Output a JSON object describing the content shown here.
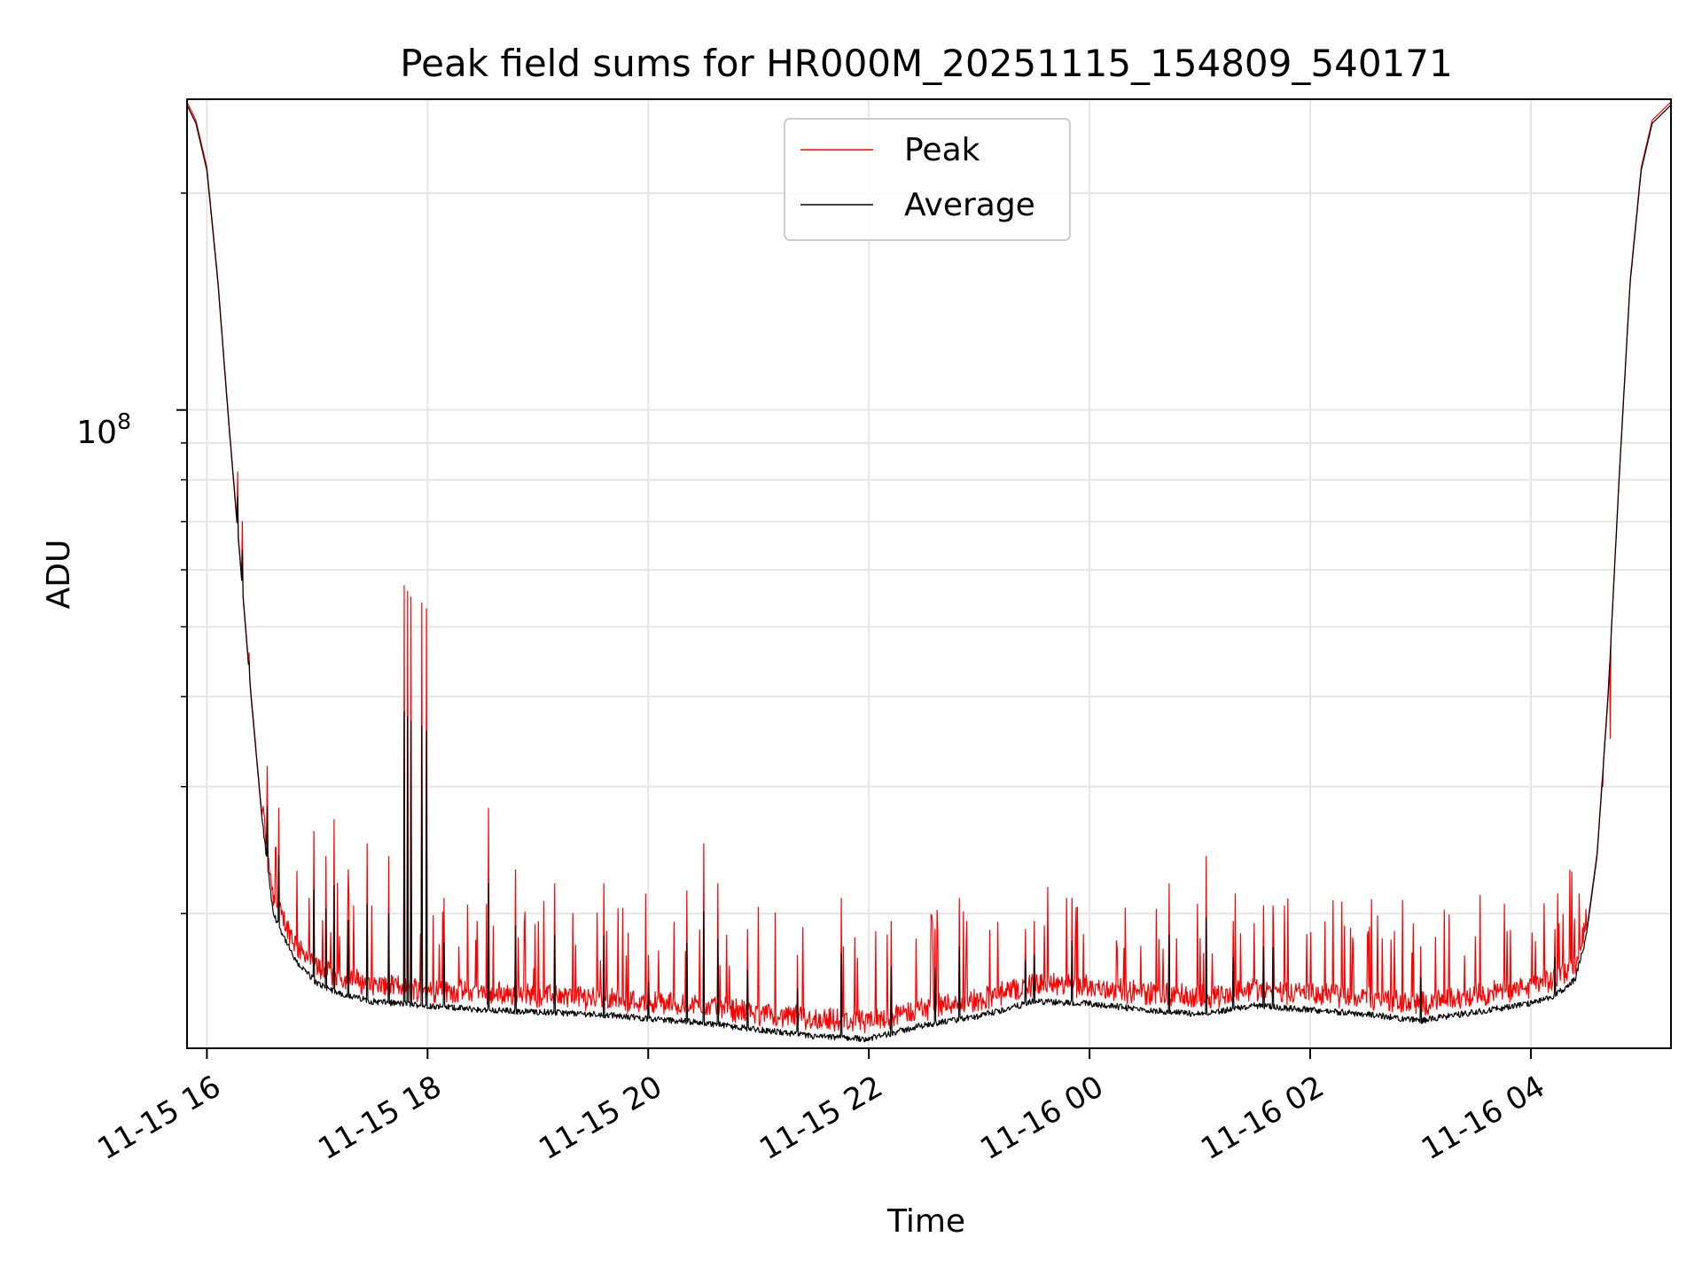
{
  "chart_data": {
    "type": "line",
    "title": "Peak field sums for HR000M_20251115_154809_540171",
    "xlabel": "Time",
    "ylabel": "ADU",
    "yscale": "log",
    "ylim": [
      13000000,
      270000000
    ],
    "xlim_hours": [
      15.82,
      29.27
    ],
    "x_unit": "hours since 2025-11-15 00:00",
    "y_major_tick": {
      "base": "10",
      "exponent": "8",
      "value": 100000000
    },
    "y_minor_ticks": [
      20000000,
      30000000,
      40000000,
      50000000,
      60000000,
      70000000,
      80000000,
      90000000,
      200000000
    ],
    "x_ticks": [
      {
        "value": 16,
        "label": "11-15 16"
      },
      {
        "value": 18,
        "label": "11-15 18"
      },
      {
        "value": 20,
        "label": "11-15 20"
      },
      {
        "value": 22,
        "label": "11-15 22"
      },
      {
        "value": 24,
        "label": "11-16 00"
      },
      {
        "value": 26,
        "label": "11-16 02"
      },
      {
        "value": 28,
        "label": "11-16 04"
      }
    ],
    "grid": true,
    "legend": {
      "position": "upper center",
      "entries": [
        {
          "label": "Peak",
          "color": "#ff0000"
        },
        {
          "label": "Average",
          "color": "#000000"
        }
      ]
    },
    "series": [
      {
        "name": "Average",
        "color": "#000000",
        "x": [
          15.82,
          15.9,
          16.0,
          16.1,
          16.2,
          16.3,
          16.4,
          16.5,
          16.6,
          16.8,
          17.0,
          17.2,
          17.5,
          18.0,
          18.5,
          19.0,
          19.5,
          20.0,
          20.5,
          21.0,
          21.5,
          22.0,
          22.5,
          23.0,
          23.5,
          24.0,
          24.5,
          25.0,
          25.5,
          26.0,
          26.5,
          27.0,
          27.5,
          28.0,
          28.2,
          28.4,
          28.5,
          28.6,
          28.7,
          28.8,
          28.9,
          29.0,
          29.1,
          29.27
        ],
        "y": [
          265000000,
          250000000,
          215000000,
          150000000,
          95000000,
          62000000,
          40000000,
          27000000,
          20000000,
          17200000,
          16000000,
          15500000,
          15100000,
          14900000,
          14700000,
          14600000,
          14500000,
          14300000,
          14100000,
          13800000,
          13500000,
          13400000,
          14000000,
          14400000,
          15100000,
          15000000,
          14700000,
          14500000,
          14900000,
          14700000,
          14500000,
          14200000,
          14600000,
          15000000,
          15300000,
          16200000,
          18500000,
          24000000,
          40000000,
          80000000,
          150000000,
          215000000,
          250000000,
          265000000
        ]
      },
      {
        "name": "Peak",
        "color": "#ff0000",
        "baseline": "slightly above Average",
        "spikes": [
          {
            "x": 16.28,
            "y": 82000000
          },
          {
            "x": 16.32,
            "y": 70000000
          },
          {
            "x": 16.38,
            "y": 46000000
          },
          {
            "x": 16.45,
            "y": 33000000
          },
          {
            "x": 16.55,
            "y": 32000000
          },
          {
            "x": 16.65,
            "y": 28000000
          },
          {
            "x": 16.97,
            "y": 26000000
          },
          {
            "x": 17.08,
            "y": 24000000
          },
          {
            "x": 17.15,
            "y": 27000000
          },
          {
            "x": 17.28,
            "y": 23000000
          },
          {
            "x": 17.45,
            "y": 25000000
          },
          {
            "x": 17.65,
            "y": 24000000
          },
          {
            "x": 17.79,
            "y": 57000000
          },
          {
            "x": 17.82,
            "y": 56000000
          },
          {
            "x": 17.85,
            "y": 55000000
          },
          {
            "x": 17.95,
            "y": 54000000
          },
          {
            "x": 17.99,
            "y": 53000000
          },
          {
            "x": 18.15,
            "y": 21000000
          },
          {
            "x": 18.55,
            "y": 28000000
          },
          {
            "x": 18.8,
            "y": 23000000
          },
          {
            "x": 19.15,
            "y": 22000000
          },
          {
            "x": 19.6,
            "y": 22000000
          },
          {
            "x": 20.0,
            "y": 17500000
          },
          {
            "x": 20.35,
            "y": 21500000
          },
          {
            "x": 20.5,
            "y": 25000000
          },
          {
            "x": 20.63,
            "y": 22000000
          },
          {
            "x": 20.9,
            "y": 19000000
          },
          {
            "x": 21.35,
            "y": 17500000
          },
          {
            "x": 21.75,
            "y": 21000000
          },
          {
            "x": 22.2,
            "y": 19500000
          },
          {
            "x": 22.6,
            "y": 19000000
          },
          {
            "x": 22.82,
            "y": 21000000
          },
          {
            "x": 23.42,
            "y": 19000000
          },
          {
            "x": 23.5,
            "y": 19500000
          },
          {
            "x": 23.84,
            "y": 21000000
          },
          {
            "x": 24.72,
            "y": 22000000
          },
          {
            "x": 25.06,
            "y": 24000000
          },
          {
            "x": 25.3,
            "y": 19500000
          },
          {
            "x": 25.58,
            "y": 20500000
          },
          {
            "x": 25.66,
            "y": 20500000
          },
          {
            "x": 27.0,
            "y": 18000000
          },
          {
            "x": 28.22,
            "y": 19000000
          },
          {
            "x": 28.65,
            "y": 30000000
          },
          {
            "x": 28.72,
            "y": 35000000
          }
        ]
      }
    ]
  }
}
